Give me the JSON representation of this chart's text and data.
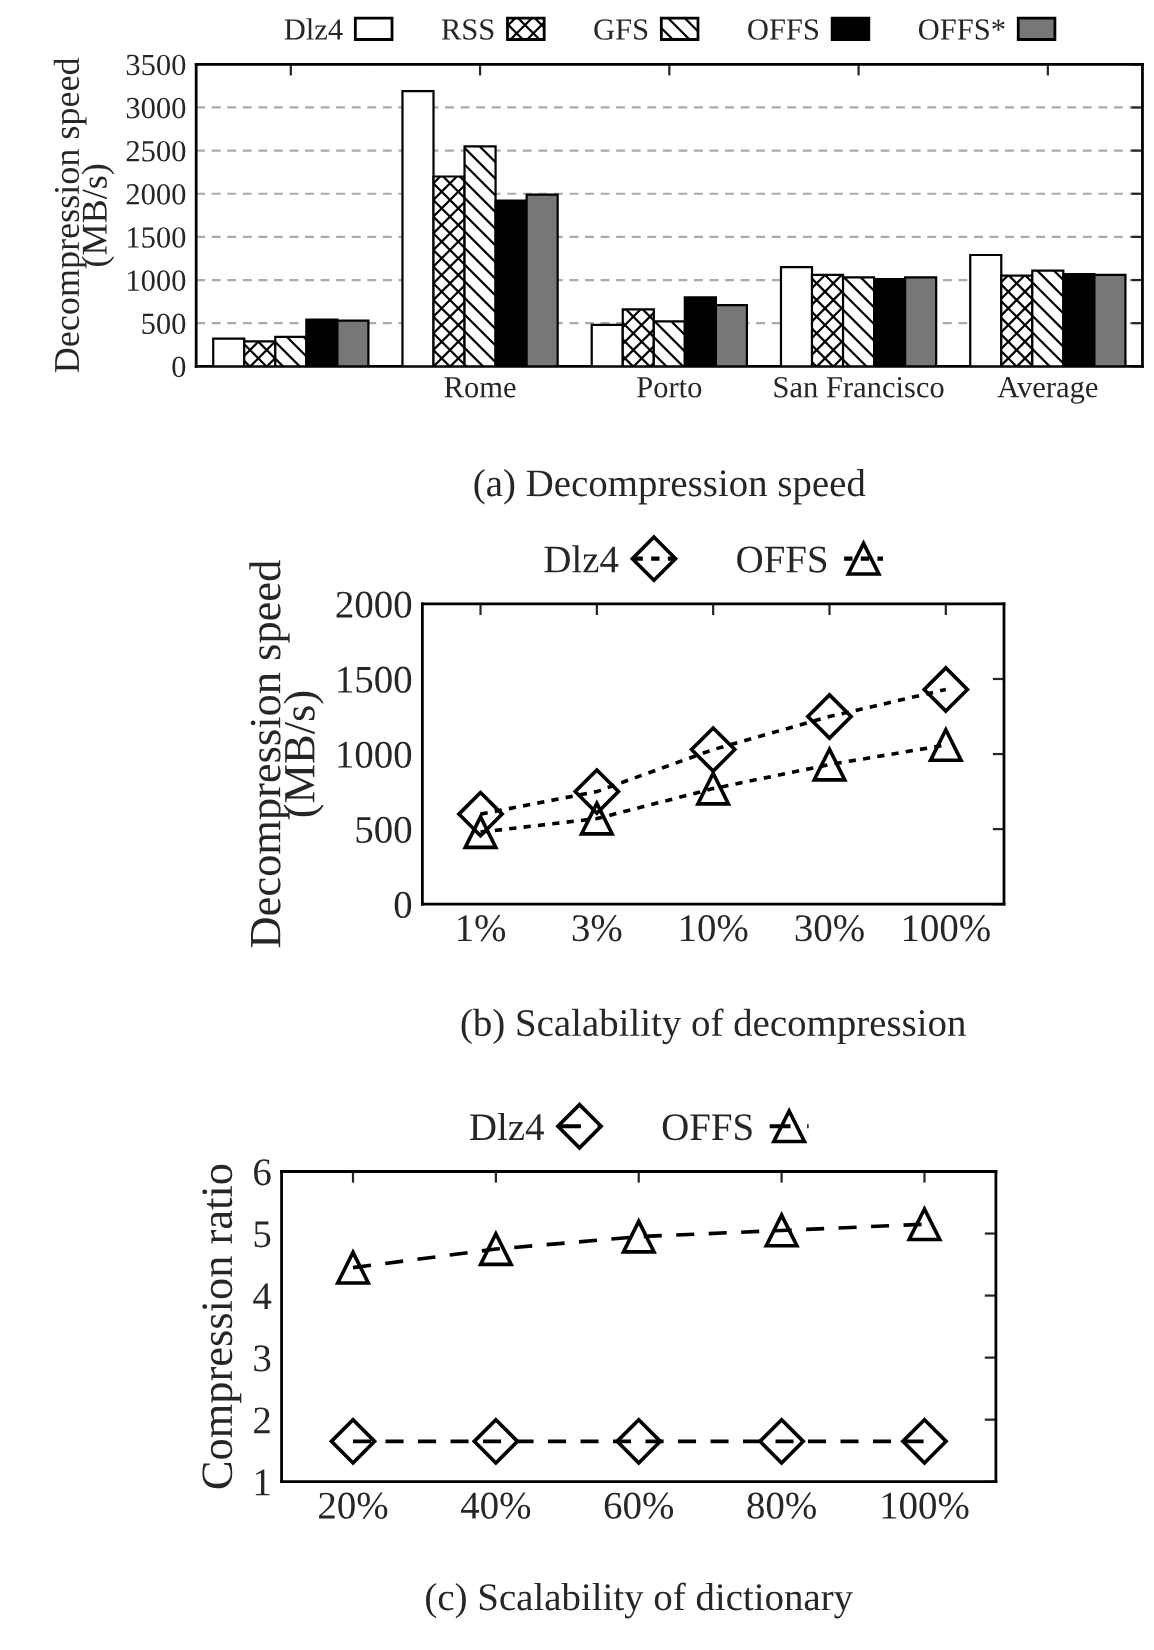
{
  "chart_data": [
    {
      "type": "bar",
      "categories": [
        null,
        "Rome",
        "Porto",
        "San Francisco",
        "Average"
      ],
      "ylabel": "Decompression speed\n(MB/s)",
      "ylim": [
        0,
        3500
      ],
      "yticks": [
        0,
        500,
        1000,
        1500,
        2000,
        2500,
        3000,
        3500
      ],
      "grid": "y",
      "legend": "top",
      "annotations": [
        "(a) Decompression speed"
      ],
      "series": [
        {
          "name": "Dlz4",
          "color": "#ffffff",
          "values": [
            320,
            3190,
            480,
            1150,
            1290
          ]
        },
        {
          "name": "RSS",
          "color": "#000000",
          "values": [
            290,
            2200,
            660,
            1060,
            1050
          ]
        },
        {
          "name": "GFS",
          "color": "#000000",
          "values": [
            340,
            2550,
            520,
            1030,
            1110
          ]
        },
        {
          "name": "OFFS",
          "color": "#000000",
          "values": [
            540,
            1920,
            800,
            1010,
            1070
          ]
        },
        {
          "name": "OFFS*",
          "color": "#777777",
          "values": [
            530,
            1990,
            710,
            1030,
            1060
          ]
        }
      ]
    },
    {
      "type": "line",
      "categories": [
        "1%",
        "3%",
        "10%",
        "30%",
        "100%"
      ],
      "ylabel": "Decompression speed\n(MB/s)",
      "ylim": [
        0,
        2000
      ],
      "yticks": [
        0,
        500,
        1000,
        1500,
        2000
      ],
      "legend": "top",
      "line_style": "dotted",
      "annotations": [
        "(b) Scalability of decompression"
      ],
      "series": [
        {
          "name": "Dlz4",
          "color": "#000000",
          "marker": "diamond",
          "values": [
            600,
            750,
            1030,
            1250,
            1430
          ]
        },
        {
          "name": "OFFS",
          "color": "#000000",
          "marker": "triangle",
          "values": [
            480,
            570,
            770,
            930,
            1060
          ]
        }
      ]
    },
    {
      "type": "line",
      "categories": [
        "20%",
        "40%",
        "60%",
        "80%",
        "100%"
      ],
      "ylabel": "Compression ratio",
      "ylim": [
        1,
        6
      ],
      "yticks": [
        1,
        2,
        3,
        4,
        5,
        6
      ],
      "legend": "top",
      "line_style": "dashed",
      "annotations": [
        "(c) Scalability of dictionary"
      ],
      "series": [
        {
          "name": "Dlz4",
          "color": "#000000",
          "marker": "diamond",
          "values": [
            1.65,
            1.65,
            1.65,
            1.65,
            1.65
          ]
        },
        {
          "name": "OFFS",
          "color": "#000000",
          "marker": "triangle",
          "values": [
            4.45,
            4.75,
            4.95,
            5.05,
            5.15
          ]
        }
      ]
    }
  ]
}
